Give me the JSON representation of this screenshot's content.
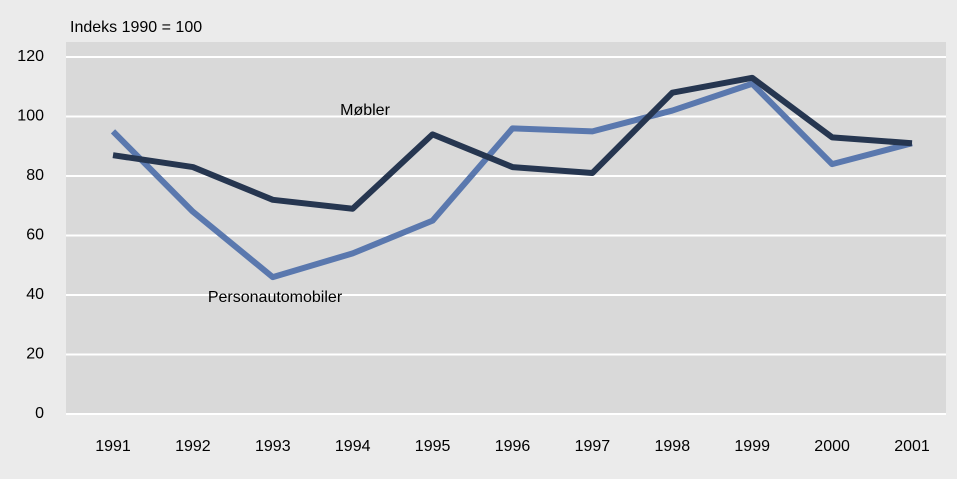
{
  "chart_data": {
    "type": "line",
    "y_label": "Indeks 1990 = 100",
    "categories": [
      "1991",
      "1992",
      "1993",
      "1994",
      "1995",
      "1996",
      "1997",
      "1998",
      "1999",
      "2000",
      "2001"
    ],
    "series": [
      {
        "name": "Møbler",
        "color": "#263650",
        "values": [
          87,
          83,
          72,
          69,
          94,
          83,
          81,
          108,
          113,
          93,
          91
        ]
      },
      {
        "name": "Personautomobiler",
        "color": "#5a78ae",
        "values": [
          95,
          68,
          46,
          54,
          65,
          96,
          95,
          102,
          111,
          84,
          91
        ]
      }
    ],
    "ylim": [
      0,
      120
    ],
    "yticks": [
      0,
      20,
      40,
      60,
      80,
      100,
      120
    ],
    "grid": true
  }
}
